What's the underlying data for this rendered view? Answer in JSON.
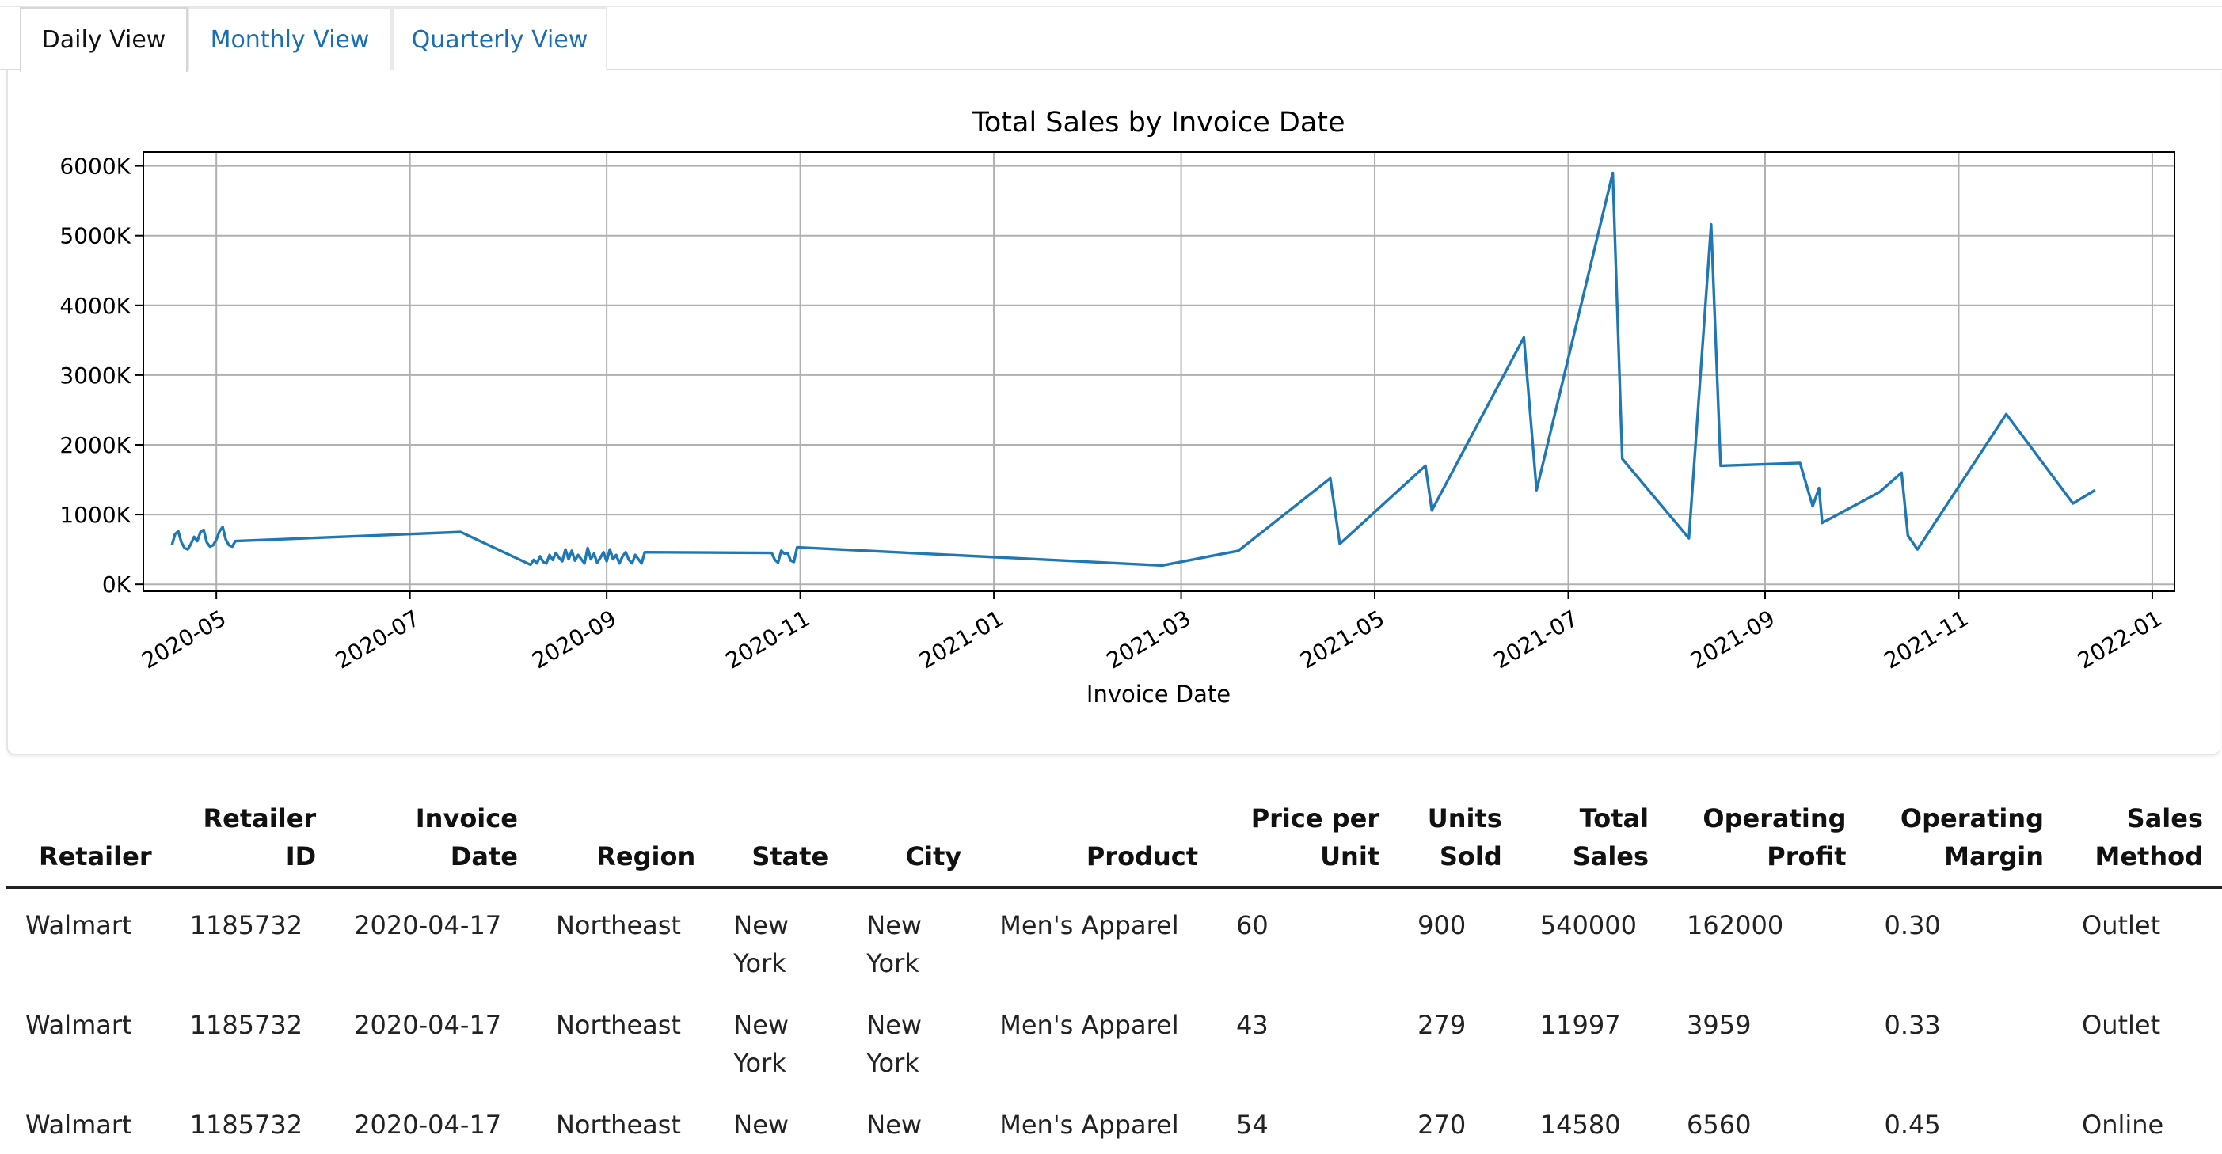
{
  "tabs": [
    {
      "label": "Daily View",
      "active": true
    },
    {
      "label": "Monthly View",
      "active": false
    },
    {
      "label": "Quarterly View",
      "active": false
    }
  ],
  "colors": {
    "line": "#1f77b4",
    "tab_link": "#1a6fb0",
    "grid": "#b0b0b0"
  },
  "chart_data": {
    "type": "line",
    "title": "Total Sales by Invoice Date",
    "xlabel": "Invoice Date",
    "ylabel": "",
    "grid": true,
    "xlim": [
      "2020-04-08",
      "2022-01-08"
    ],
    "ylim": [
      -100000,
      6200000
    ],
    "x_ticks": [
      "2020-05-01",
      "2020-07-01",
      "2020-09-01",
      "2020-11-01",
      "2021-01-01",
      "2021-03-01",
      "2021-05-01",
      "2021-07-01",
      "2021-09-01",
      "2021-11-01",
      "2022-01-01"
    ],
    "x_tick_labels": [
      "2020-05",
      "2020-07",
      "2020-09",
      "2020-11",
      "2021-01",
      "2021-03",
      "2021-05",
      "2021-07",
      "2021-09",
      "2021-11",
      "2022-01"
    ],
    "y_ticks": [
      0,
      1000000,
      2000000,
      3000000,
      4000000,
      5000000,
      6000000
    ],
    "y_tick_labels": [
      "0K",
      "1000K",
      "2000K",
      "3000K",
      "4000K",
      "5000K",
      "6000K"
    ],
    "series": [
      {
        "points": [
          [
            "2020-04-17",
            560000
          ],
          [
            "2020-04-18",
            720000
          ],
          [
            "2020-04-19",
            760000
          ],
          [
            "2020-04-20",
            600000
          ],
          [
            "2020-04-21",
            520000
          ],
          [
            "2020-04-22",
            500000
          ],
          [
            "2020-04-23",
            580000
          ],
          [
            "2020-04-24",
            680000
          ],
          [
            "2020-04-25",
            620000
          ],
          [
            "2020-04-26",
            750000
          ],
          [
            "2020-04-27",
            780000
          ],
          [
            "2020-04-28",
            600000
          ],
          [
            "2020-04-29",
            540000
          ],
          [
            "2020-04-30",
            560000
          ],
          [
            "2020-05-01",
            640000
          ],
          [
            "2020-05-02",
            760000
          ],
          [
            "2020-05-03",
            820000
          ],
          [
            "2020-05-04",
            640000
          ],
          [
            "2020-05-05",
            560000
          ],
          [
            "2020-05-06",
            540000
          ],
          [
            "2020-05-07",
            620000
          ],
          [
            "2020-07-17",
            750000
          ],
          [
            "2020-08-08",
            280000
          ],
          [
            "2020-08-09",
            350000
          ],
          [
            "2020-08-10",
            300000
          ],
          [
            "2020-08-11",
            400000
          ],
          [
            "2020-08-12",
            320000
          ],
          [
            "2020-08-13",
            300000
          ],
          [
            "2020-08-14",
            420000
          ],
          [
            "2020-08-15",
            350000
          ],
          [
            "2020-08-16",
            450000
          ],
          [
            "2020-08-17",
            380000
          ],
          [
            "2020-08-18",
            330000
          ],
          [
            "2020-08-19",
            500000
          ],
          [
            "2020-08-20",
            360000
          ],
          [
            "2020-08-21",
            480000
          ],
          [
            "2020-08-22",
            340000
          ],
          [
            "2020-08-23",
            420000
          ],
          [
            "2020-08-24",
            360000
          ],
          [
            "2020-08-25",
            300000
          ],
          [
            "2020-08-26",
            520000
          ],
          [
            "2020-08-27",
            360000
          ],
          [
            "2020-08-28",
            440000
          ],
          [
            "2020-08-29",
            310000
          ],
          [
            "2020-08-30",
            380000
          ],
          [
            "2020-08-31",
            460000
          ],
          [
            "2020-09-01",
            330000
          ],
          [
            "2020-09-02",
            500000
          ],
          [
            "2020-09-03",
            360000
          ],
          [
            "2020-09-04",
            420000
          ],
          [
            "2020-09-05",
            300000
          ],
          [
            "2020-09-06",
            400000
          ],
          [
            "2020-09-07",
            460000
          ],
          [
            "2020-09-08",
            350000
          ],
          [
            "2020-09-09",
            300000
          ],
          [
            "2020-09-10",
            420000
          ],
          [
            "2020-09-11",
            360000
          ],
          [
            "2020-09-12",
            300000
          ],
          [
            "2020-09-13",
            460000
          ],
          [
            "2020-10-23",
            450000
          ],
          [
            "2020-10-24",
            350000
          ],
          [
            "2020-10-25",
            310000
          ],
          [
            "2020-10-26",
            480000
          ],
          [
            "2020-10-27",
            440000
          ],
          [
            "2020-10-28",
            450000
          ],
          [
            "2020-10-29",
            340000
          ],
          [
            "2020-10-30",
            320000
          ],
          [
            "2020-10-31",
            530000
          ],
          [
            "2021-02-23",
            270000
          ],
          [
            "2021-03-19",
            480000
          ],
          [
            "2021-04-17",
            1520000
          ],
          [
            "2021-04-20",
            580000
          ],
          [
            "2021-05-17",
            1700000
          ],
          [
            "2021-05-19",
            1060000
          ],
          [
            "2021-06-17",
            3540000
          ],
          [
            "2021-06-21",
            1350000
          ],
          [
            "2021-07-15",
            5900000
          ],
          [
            "2021-07-18",
            1800000
          ],
          [
            "2021-08-08",
            660000
          ],
          [
            "2021-08-15",
            5160000
          ],
          [
            "2021-08-18",
            1700000
          ],
          [
            "2021-09-12",
            1740000
          ],
          [
            "2021-09-16",
            1120000
          ],
          [
            "2021-09-18",
            1380000
          ],
          [
            "2021-09-19",
            880000
          ],
          [
            "2021-10-07",
            1320000
          ],
          [
            "2021-10-14",
            1600000
          ],
          [
            "2021-10-16",
            700000
          ],
          [
            "2021-10-19",
            500000
          ],
          [
            "2021-11-16",
            2440000
          ],
          [
            "2021-12-07",
            1160000
          ],
          [
            "2021-12-14",
            1350000
          ]
        ]
      }
    ]
  },
  "table": {
    "headers": [
      [
        "",
        "Retailer"
      ],
      [
        "Retailer",
        "ID"
      ],
      [
        "Invoice",
        "Date"
      ],
      [
        "",
        "Region"
      ],
      [
        "",
        "State"
      ],
      [
        "",
        "City"
      ],
      [
        "",
        "Product"
      ],
      [
        "Price per",
        "Unit"
      ],
      [
        "Units",
        "Sold"
      ],
      [
        "Total",
        "Sales"
      ],
      [
        "Operating",
        "Profit"
      ],
      [
        "Operating",
        "Margin"
      ],
      [
        "Sales",
        "Method"
      ]
    ],
    "rows": [
      [
        "Walmart",
        "1185732",
        "2020-04-17",
        "Northeast",
        "New York",
        "New York",
        "Men's Apparel",
        "60",
        "900",
        "540000",
        "162000",
        "0.30",
        "Outlet"
      ],
      [
        "Walmart",
        "1185732",
        "2020-04-17",
        "Northeast",
        "New York",
        "New York",
        "Men's Apparel",
        "43",
        "279",
        "11997",
        "3959",
        "0.33",
        "Outlet"
      ],
      [
        "Walmart",
        "1185732",
        "2020-04-17",
        "Northeast",
        "New",
        "New",
        "Men's Apparel",
        "54",
        "270",
        "14580",
        "6560",
        "0.45",
        "Online"
      ]
    ]
  }
}
